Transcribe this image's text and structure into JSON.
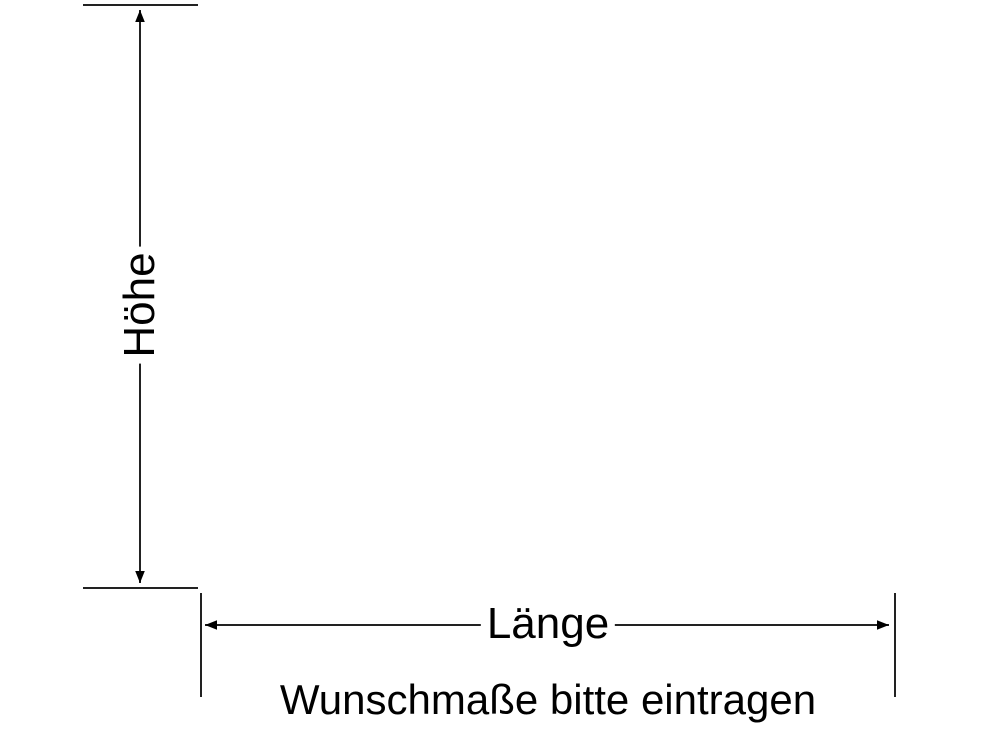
{
  "labels": {
    "height": "Höhe",
    "length": "Länge",
    "instruction": "Wunschmaße bitte eintragen"
  },
  "colors": {
    "line": "#000000",
    "background": "#ffffff"
  }
}
